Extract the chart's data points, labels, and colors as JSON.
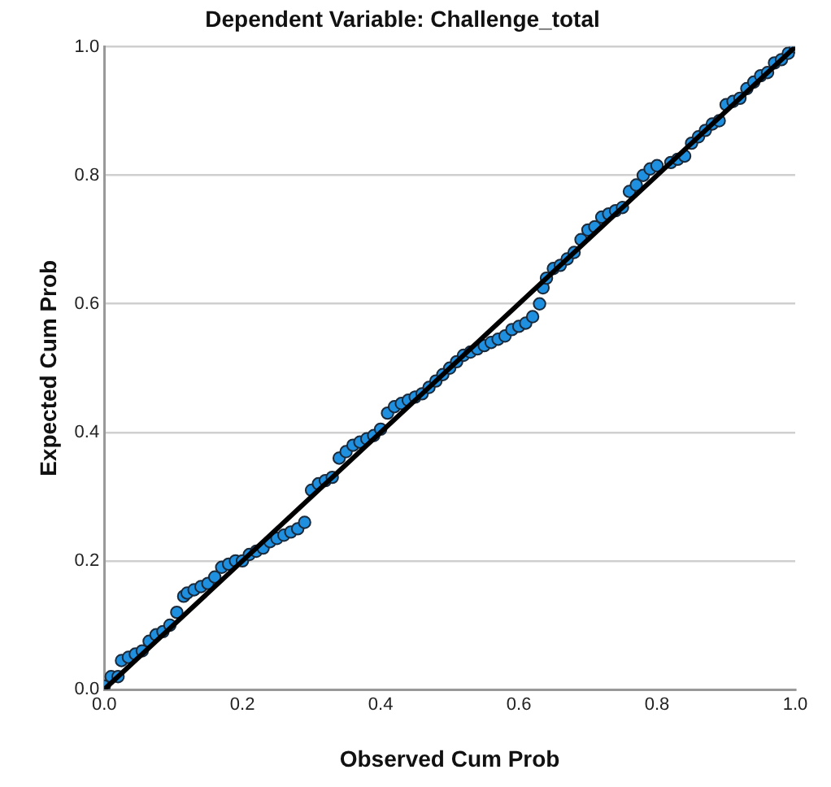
{
  "chart_data": {
    "type": "scatter",
    "title": "Dependent Variable: Challenge_total",
    "xlabel": "Observed Cum Prob",
    "ylabel": "Expected Cum Prob",
    "xlim": [
      0,
      1
    ],
    "ylim": [
      0,
      1
    ],
    "xticks": [
      {
        "value": 0,
        "label": "0.0"
      },
      {
        "value": 0.2,
        "label": "0.2"
      },
      {
        "value": 0.4,
        "label": "0.4"
      },
      {
        "value": 0.6,
        "label": "0.6"
      },
      {
        "value": 0.8,
        "label": "0.8"
      },
      {
        "value": 1,
        "label": "1.0"
      }
    ],
    "yticks": [
      {
        "value": 0,
        "label": "0.0"
      },
      {
        "value": 0.2,
        "label": "0.2"
      },
      {
        "value": 0.4,
        "label": "0.4"
      },
      {
        "value": 0.6,
        "label": "0.6"
      },
      {
        "value": 0.8,
        "label": "0.8"
      },
      {
        "value": 1,
        "label": "1.0"
      }
    ],
    "grid": "y",
    "legend": false,
    "series": [
      {
        "marker": "circle",
        "color": "#1f8fe0",
        "x": [
          0,
          0.01,
          0.02,
          0.025,
          0.035,
          0.045,
          0.055,
          0.065,
          0.075,
          0.085,
          0.095,
          0.105,
          0.115,
          0.12,
          0.13,
          0.14,
          0.15,
          0.16,
          0.17,
          0.18,
          0.19,
          0.2,
          0.21,
          0.22,
          0.23,
          0.24,
          0.25,
          0.26,
          0.27,
          0.28,
          0.29,
          0.3,
          0.31,
          0.32,
          0.33,
          0.34,
          0.35,
          0.36,
          0.37,
          0.38,
          0.39,
          0.4,
          0.41,
          0.42,
          0.43,
          0.44,
          0.45,
          0.46,
          0.47,
          0.48,
          0.49,
          0.5,
          0.51,
          0.52,
          0.53,
          0.54,
          0.55,
          0.56,
          0.57,
          0.58,
          0.59,
          0.6,
          0.61,
          0.62,
          0.63,
          0.635,
          0.64,
          0.65,
          0.66,
          0.67,
          0.68,
          0.69,
          0.7,
          0.71,
          0.72,
          0.73,
          0.74,
          0.75,
          0.76,
          0.77,
          0.78,
          0.79,
          0.8,
          0.82,
          0.83,
          0.84,
          0.85,
          0.86,
          0.87,
          0.88,
          0.89,
          0.9,
          0.91,
          0.92,
          0.93,
          0.94,
          0.95,
          0.96,
          0.97,
          0.98,
          0.99,
          1
        ],
        "values": [
          0.005,
          0.02,
          0.02,
          0.045,
          0.05,
          0.055,
          0.06,
          0.075,
          0.085,
          0.09,
          0.1,
          0.12,
          0.145,
          0.15,
          0.155,
          0.16,
          0.165,
          0.175,
          0.19,
          0.195,
          0.2,
          0.2,
          0.21,
          0.215,
          0.22,
          0.23,
          0.235,
          0.24,
          0.245,
          0.25,
          0.26,
          0.31,
          0.32,
          0.325,
          0.33,
          0.36,
          0.37,
          0.38,
          0.385,
          0.39,
          0.395,
          0.405,
          0.43,
          0.44,
          0.445,
          0.45,
          0.455,
          0.46,
          0.47,
          0.48,
          0.49,
          0.5,
          0.51,
          0.52,
          0.525,
          0.53,
          0.535,
          0.54,
          0.545,
          0.55,
          0.56,
          0.565,
          0.57,
          0.58,
          0.6,
          0.625,
          0.64,
          0.655,
          0.66,
          0.67,
          0.68,
          0.7,
          0.715,
          0.72,
          0.735,
          0.74,
          0.745,
          0.75,
          0.775,
          0.785,
          0.8,
          0.81,
          0.815,
          0.82,
          0.825,
          0.83,
          0.85,
          0.86,
          0.87,
          0.88,
          0.885,
          0.91,
          0.915,
          0.92,
          0.935,
          0.945,
          0.955,
          0.96,
          0.975,
          0.98,
          0.99,
          1
        ]
      },
      {
        "type": "line",
        "marker": "none",
        "color": "#000000",
        "x": [
          0,
          1
        ],
        "values": [
          0,
          1
        ]
      }
    ]
  }
}
